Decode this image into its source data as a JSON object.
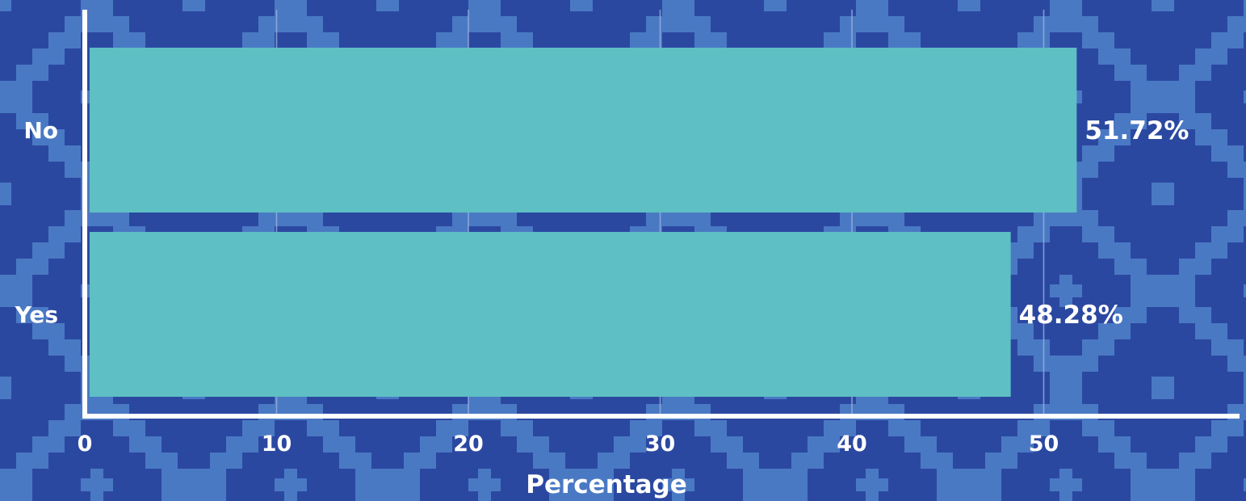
{
  "chart_data": {
    "type": "bar",
    "orientation": "horizontal",
    "categories": [
      "No",
      "Yes"
    ],
    "values": [
      51.72,
      48.28
    ],
    "value_labels": [
      "51.72%",
      "48.28%"
    ],
    "xlabel": "Percentage",
    "ylabel": "",
    "xlim": [
      0,
      55
    ],
    "xticks": [
      0,
      10,
      20,
      30,
      40,
      50
    ],
    "xtick_labels": [
      "0",
      "10",
      "20",
      "30",
      "40",
      "50"
    ],
    "grid": "vertical",
    "legend": "none"
  },
  "colors": {
    "background": "#2b48a1",
    "pattern": "#4a79c4",
    "bar": "#5ebfc4",
    "axis": "#ffffff",
    "grid": "#9fb6e0",
    "text": "#ffffff"
  }
}
